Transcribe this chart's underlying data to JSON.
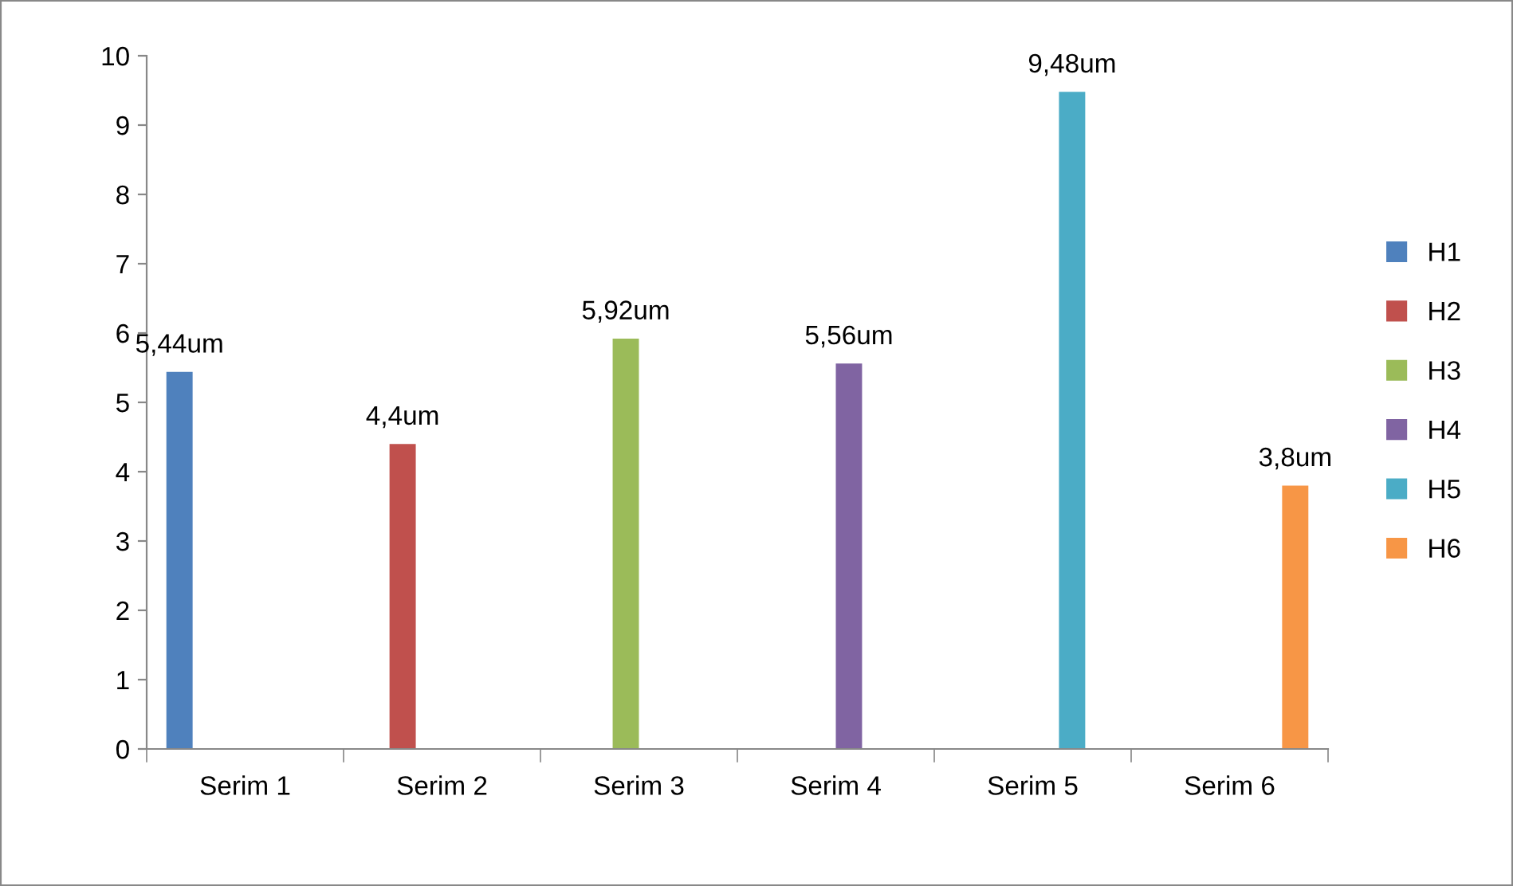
{
  "chart_data": {
    "type": "bar",
    "categories": [
      "Serim 1",
      "Serim 2",
      "Serim 3",
      "Serim 4",
      "Serim 5",
      "Serim 6"
    ],
    "series": [
      {
        "name": "H1",
        "color": "#4f81bd",
        "values": [
          5.44,
          null,
          null,
          null,
          null,
          null
        ],
        "value_labels": [
          "5,44um",
          null,
          null,
          null,
          null,
          null
        ]
      },
      {
        "name": "H2",
        "color": "#c0504d",
        "values": [
          null,
          4.4,
          null,
          null,
          null,
          null
        ],
        "value_labels": [
          null,
          "4,4um",
          null,
          null,
          null,
          null
        ]
      },
      {
        "name": "H3",
        "color": "#9bbb59",
        "values": [
          null,
          null,
          5.92,
          null,
          null,
          null
        ],
        "value_labels": [
          null,
          null,
          "5,92um",
          null,
          null,
          null
        ]
      },
      {
        "name": "H4",
        "color": "#8064a2",
        "values": [
          null,
          null,
          null,
          5.56,
          null,
          null
        ],
        "value_labels": [
          null,
          null,
          null,
          "5,56um",
          null,
          null
        ]
      },
      {
        "name": "H5",
        "color": "#4bacc6",
        "values": [
          null,
          null,
          null,
          null,
          9.48,
          null
        ],
        "value_labels": [
          null,
          null,
          null,
          null,
          "9,48um",
          null
        ]
      },
      {
        "name": "H6",
        "color": "#f79646",
        "values": [
          null,
          null,
          null,
          null,
          null,
          3.8
        ],
        "value_labels": [
          null,
          null,
          null,
          null,
          null,
          "3,8um"
        ]
      }
    ],
    "ylim": [
      0,
      10
    ],
    "yticks": [
      0,
      1,
      2,
      3,
      4,
      5,
      6,
      7,
      8,
      9,
      10
    ],
    "grid": false,
    "legend": "right"
  }
}
